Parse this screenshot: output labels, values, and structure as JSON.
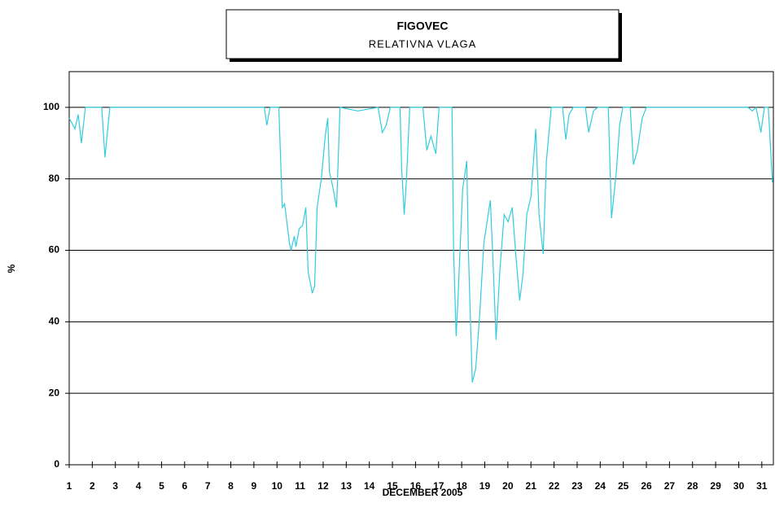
{
  "chart_data": {
    "type": "line",
    "title": "FIGOVEC",
    "subtitle": "RELATIVNA VLAGA",
    "x_label": "DECEMBER 2005",
    "y_label": "%",
    "x": [
      1.0,
      1.25,
      1.39,
      1.53,
      1.7,
      2.41,
      2.55,
      2.76,
      9.45,
      9.56,
      9.7,
      10.08,
      10.23,
      10.33,
      10.54,
      10.61,
      10.75,
      10.82,
      10.96,
      11.11,
      11.25,
      11.35,
      11.53,
      11.63,
      11.74,
      11.92,
      12.09,
      12.2,
      12.27,
      12.41,
      12.58,
      12.73,
      13.5,
      14.38,
      14.56,
      14.73,
      14.91,
      15.33,
      15.4,
      15.51,
      15.61,
      15.75,
      16.32,
      16.49,
      16.67,
      16.88,
      17.02,
      17.58,
      17.65,
      17.76,
      17.83,
      18.04,
      18.22,
      18.29,
      18.46,
      18.61,
      18.78,
      18.96,
      19.24,
      19.35,
      19.49,
      19.66,
      19.84,
      20.01,
      20.19,
      20.33,
      20.51,
      20.65,
      20.82,
      21.0,
      21.21,
      21.35,
      21.53,
      21.67,
      21.88,
      22.37,
      22.51,
      22.65,
      22.83,
      23.36,
      23.5,
      23.71,
      23.89,
      24.35,
      24.49,
      24.7,
      24.84,
      24.98,
      25.3,
      25.44,
      25.61,
      25.82,
      26.0,
      30.4,
      30.58,
      30.75,
      30.96,
      31.11,
      31.28,
      31.46
    ],
    "series": [
      {
        "name": "RELATIVNA VLAGA",
        "color": "#33ccdd",
        "values": [
          97,
          94,
          98,
          90,
          100,
          100,
          86,
          100,
          100,
          95,
          100,
          100,
          72,
          73,
          62,
          60,
          64,
          61,
          66,
          67,
          72,
          54,
          48,
          50,
          72,
          80,
          92,
          97,
          82,
          78,
          72,
          100,
          99,
          100,
          93,
          95,
          100,
          100,
          83,
          70,
          80,
          100,
          100,
          88,
          92,
          87,
          100,
          100,
          60,
          36,
          45,
          77,
          85,
          60,
          23,
          27,
          42,
          62,
          74,
          58,
          35,
          55,
          70,
          68,
          72,
          60,
          46,
          53,
          70,
          75,
          94,
          70,
          59,
          85,
          100,
          100,
          91,
          98,
          100,
          100,
          93,
          99,
          100,
          100,
          69,
          82,
          95,
          100,
          100,
          84,
          88,
          97,
          100,
          100,
          99,
          100,
          93,
          100,
          100,
          79
        ]
      }
    ],
    "xlim": [
      1,
      31.5
    ],
    "xticks": [
      1,
      2,
      3,
      4,
      5,
      6,
      7,
      8,
      9,
      10,
      11,
      12,
      13,
      14,
      15,
      16,
      17,
      18,
      19,
      20,
      21,
      22,
      23,
      24,
      25,
      26,
      27,
      28,
      29,
      30,
      31
    ],
    "ylim": [
      0,
      110
    ],
    "yticks": [
      0,
      20,
      40,
      60,
      80,
      100
    ],
    "grid": true
  }
}
